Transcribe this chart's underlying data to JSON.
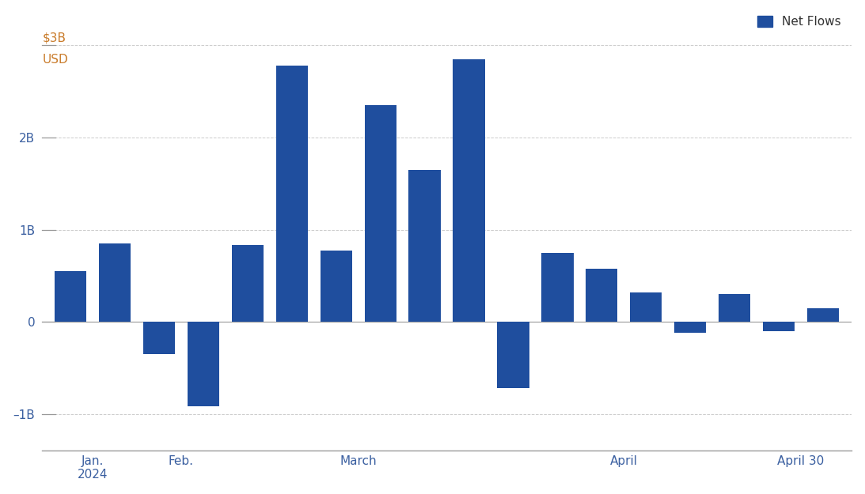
{
  "values": [
    0.55,
    0.85,
    -0.35,
    -0.92,
    0.83,
    2.78,
    0.77,
    2.35,
    1.65,
    2.85,
    -0.72,
    0.75,
    0.58,
    0.32,
    -0.12,
    0.3,
    -0.1,
    0.15
  ],
  "bar_color": "#1f4e9e",
  "ytick_values": [
    -1,
    0,
    1,
    2,
    3
  ],
  "ytick_labels": [
    "–1B",
    "0",
    "1B",
    "2B",
    ""
  ],
  "ylim_min": -1.4,
  "ylim_max": 3.25,
  "xtick_positions": [
    0.5,
    2.5,
    6.5,
    12.5,
    16.5
  ],
  "xtick_labels": [
    "Jan.\n2024",
    "Feb.",
    "March",
    "April",
    "April 30"
  ],
  "legend_label": "Net Flows",
  "legend_color": "#1f4e9e",
  "dollar3b_label": "$3B",
  "usd_label": "USD",
  "dollar_color": "#c97b2a",
  "ytick_color": "#3a5fa0",
  "xtick_color": "#3a5fa0",
  "background_color": "#ffffff",
  "grid_color": "#cccccc",
  "spine_color": "#999999"
}
